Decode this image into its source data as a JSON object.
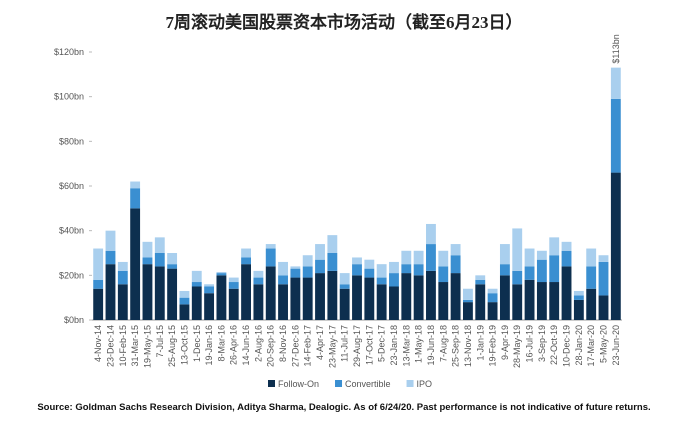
{
  "chart_data": {
    "type": "bar",
    "stacked": true,
    "title": "7周滚动美国股票资本市场活动（截至6月23日）",
    "annotation": "$113bn",
    "source": "Source: Goldman Sachs Research Division, Aditya Sharma, Dealogic. As of 6/24/20. Past performance is not indicative of future returns.",
    "legend": "bottom",
    "categories": [
      "4-Nov-14",
      "23-Dec-14",
      "10-Feb-15",
      "31-Mar-15",
      "19-May-15",
      "7-Jul-15",
      "25-Aug-15",
      "13-Oct-15",
      "1-Dec-15",
      "19-Jan-16",
      "8-Mar-16",
      "26-Apr-16",
      "14-Jun-16",
      "2-Aug-16",
      "20-Sep-16",
      "8-Nov-16",
      "27-Dec-16",
      "14-Feb-17",
      "4-Apr-17",
      "23-May-17",
      "11-Jul-17",
      "29-Aug-17",
      "17-Oct-17",
      "5-Dec-17",
      "23-Jan-18",
      "13-Mar-18",
      "1-May-18",
      "19-Jun-18",
      "7-Aug-18",
      "25-Sep-18",
      "13-Nov-18",
      "1-Jan-19",
      "19-Feb-19",
      "9-Apr-19",
      "28-May-19",
      "16-Jul-19",
      "3-Sep-19",
      "22-Oct-19",
      "10-Dec-19",
      "28-Jan-20",
      "17-Mar-20",
      "5-May-20",
      "23-Jun-20"
    ],
    "series": [
      {
        "name": "Follow-On",
        "color": "#0d2f4f",
        "values": [
          14,
          25,
          16,
          50,
          25,
          24,
          23,
          7,
          15,
          12,
          20,
          14,
          25,
          16,
          24,
          16,
          19,
          19,
          21,
          22,
          14,
          20,
          19,
          16,
          15,
          21,
          20,
          22,
          17,
          21,
          8,
          16,
          8,
          20,
          16,
          18,
          17,
          17,
          24,
          9,
          14,
          11,
          66
        ]
      },
      {
        "name": "Convertible",
        "color": "#3a8fd1",
        "values": [
          4,
          6,
          6,
          9,
          3,
          6,
          2,
          3,
          2,
          3,
          1,
          3,
          3,
          3,
          8,
          4,
          4,
          5,
          6,
          8,
          2,
          5,
          4,
          3,
          6,
          4,
          5,
          12,
          7,
          8,
          1,
          2,
          4,
          5,
          6,
          6,
          10,
          12,
          7,
          2,
          10,
          15,
          33
        ]
      },
      {
        "name": "IPO",
        "color": "#a9cfee",
        "values": [
          14,
          9,
          4,
          3,
          7,
          7,
          5,
          3,
          5,
          1,
          0.5,
          2,
          4,
          3,
          2,
          6,
          1,
          5,
          7,
          8,
          5,
          3,
          4,
          6,
          5,
          6,
          6,
          9,
          7,
          5,
          5,
          2,
          2,
          9,
          19,
          8,
          4,
          8,
          4,
          2,
          8,
          3,
          14
        ]
      }
    ],
    "ylim": [
      0,
      120
    ],
    "yticks": [
      {
        "value": 0,
        "label": "$0bn"
      },
      {
        "value": 20,
        "label": "$20bn"
      },
      {
        "value": 40,
        "label": "$40bn"
      },
      {
        "value": 60,
        "label": "$60bn"
      },
      {
        "value": 80,
        "label": "$80bn"
      },
      {
        "value": 100,
        "label": "$100bn"
      },
      {
        "value": 120,
        "label": "$120bn"
      }
    ],
    "grid": false
  }
}
